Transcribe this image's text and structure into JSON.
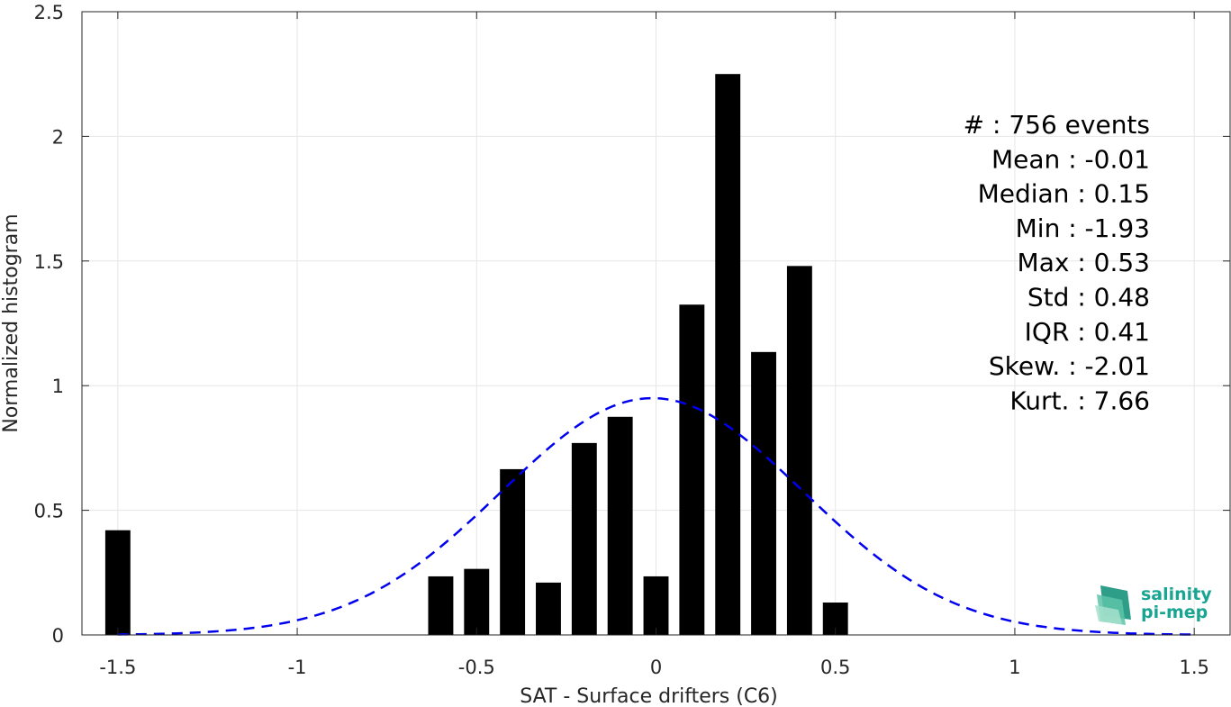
{
  "chart_data": {
    "type": "bar",
    "xlabel": "SAT - Surface drifters (C6)",
    "ylabel": "Normalized histogram",
    "xlim": [
      -1.6,
      1.6
    ],
    "ylim": [
      0,
      2.5
    ],
    "x_ticks": [
      -1.5,
      -1,
      -0.5,
      0,
      0.5,
      1,
      1.5
    ],
    "x_tick_labels": [
      "-1.5",
      "-1",
      "-0.5",
      "0",
      "0.5",
      "1",
      "1.5"
    ],
    "y_ticks": [
      0,
      0.5,
      1,
      1.5,
      2,
      2.5
    ],
    "y_tick_labels": [
      "0",
      "0.5",
      "1",
      "1.5",
      "2",
      "2.5"
    ],
    "grid": true,
    "bar_width": 0.07,
    "bars": [
      {
        "x": -1.5,
        "value": 0.42
      },
      {
        "x": -0.6,
        "value": 0.235
      },
      {
        "x": -0.5,
        "value": 0.265
      },
      {
        "x": -0.4,
        "value": 0.665
      },
      {
        "x": -0.3,
        "value": 0.21
      },
      {
        "x": -0.2,
        "value": 0.77
      },
      {
        "x": -0.1,
        "value": 0.875
      },
      {
        "x": 0.0,
        "value": 0.235
      },
      {
        "x": 0.1,
        "value": 1.325
      },
      {
        "x": 0.2,
        "value": 2.25
      },
      {
        "x": 0.3,
        "value": 1.135
      },
      {
        "x": 0.4,
        "value": 1.48
      },
      {
        "x": 0.5,
        "value": 0.13
      }
    ],
    "fit_curve": {
      "style": "dashed",
      "color": "#0000ee",
      "mean": -0.01,
      "std": 0.42,
      "x_range": [
        -1.5,
        1.5
      ]
    },
    "bar_color": "#000000",
    "stats": [
      {
        "label": "#  : 756 events"
      },
      {
        "label": "Mean : -0.01"
      },
      {
        "label": "Median : 0.15"
      },
      {
        "label": "Min : -1.93"
      },
      {
        "label": "Max : 0.53"
      },
      {
        "label": "Std : 0.48"
      },
      {
        "label": "IQR : 0.41"
      },
      {
        "label": "Skew. : -2.01"
      },
      {
        "label": "Kurt. : 7.66"
      }
    ]
  },
  "logo": {
    "line1": "salinity",
    "line2": "pi-mep",
    "color": "#1aa592"
  }
}
